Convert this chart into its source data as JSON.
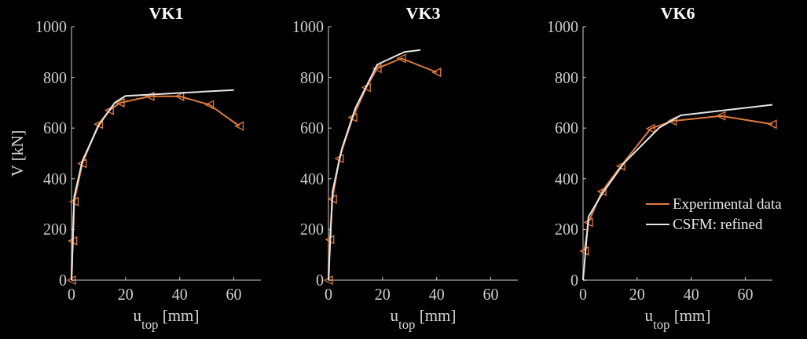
{
  "chart_data": [
    {
      "type": "line",
      "title": "VK1",
      "xlabel": "u$_{top}$ [mm]",
      "ylabel": "V [kN]",
      "xlim": [
        0,
        70
      ],
      "xticks": [
        0,
        20,
        40,
        60
      ],
      "ylim": [
        0,
        1000
      ],
      "yticks": [
        0,
        200,
        400,
        600,
        800,
        1000
      ],
      "legend": false,
      "series": [
        {
          "color": "#e07b3c",
          "marker": "triangle",
          "x": [
            0,
            0.5,
            1,
            4,
            10,
            14,
            18,
            29,
            40,
            51,
            62
          ],
          "values": [
            0,
            155,
            310,
            460,
            615,
            670,
            700,
            725,
            725,
            692,
            608
          ]
        },
        {
          "color": "#e6e6e6",
          "marker": "none",
          "x": [
            0,
            1,
            4,
            10,
            16,
            20,
            60
          ],
          "values": [
            0,
            330,
            470,
            610,
            700,
            727,
            750
          ]
        }
      ]
    },
    {
      "type": "line",
      "title": "VK3",
      "xlabel": "u$_{top}$ [mm]",
      "xlim": [
        0,
        70
      ],
      "xticks": [
        0,
        20,
        40,
        60
      ],
      "ylim": [
        0,
        1000
      ],
      "yticks": [
        0,
        200,
        400,
        600,
        800,
        1000
      ],
      "legend": false,
      "series": [
        {
          "color": "#e07b3c",
          "marker": "triangle",
          "x": [
            0,
            0.5,
            1.5,
            4,
            9,
            14,
            18,
            27,
            40
          ],
          "values": [
            0,
            160,
            320,
            480,
            642,
            760,
            835,
            875,
            820
          ]
        },
        {
          "color": "#e6e6e6",
          "marker": "none",
          "x": [
            0,
            1.5,
            5,
            10,
            18,
            28,
            34
          ],
          "values": [
            0,
            350,
            520,
            680,
            850,
            900,
            908
          ]
        }
      ]
    },
    {
      "type": "line",
      "title": "VK6",
      "xlabel": "u$_{top}$ [mm]",
      "xlim": [
        0,
        70
      ],
      "xticks": [
        0,
        20,
        40,
        60
      ],
      "ylim": [
        0,
        1000
      ],
      "yticks": [
        0,
        200,
        400,
        600,
        800,
        1000
      ],
      "legend": "right",
      "series": [
        {
          "name": "Experimental data",
          "color": "#e07b3c",
          "marker": "triangle",
          "x": [
            0.5,
            2,
            7,
            14,
            25,
            33,
            51,
            70
          ],
          "values": [
            115,
            228,
            350,
            450,
            598,
            628,
            648,
            615
          ]
        },
        {
          "name": "CSFM: refined",
          "color": "#e6e6e6",
          "marker": "none",
          "x": [
            0,
            2,
            7,
            15,
            28,
            36,
            70
          ],
          "values": [
            0,
            250,
            340,
            460,
            600,
            650,
            692
          ]
        }
      ]
    }
  ]
}
